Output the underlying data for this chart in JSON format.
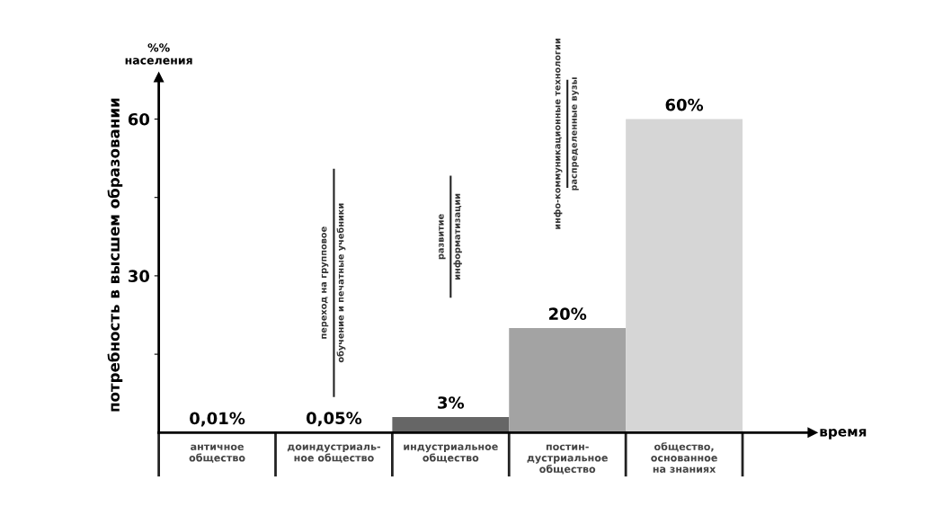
{
  "chart_data": {
    "type": "bar",
    "ylabel": "потребность в высшем образовании",
    "xlabel": "время",
    "categories": [
      "античное\nобщество",
      "доиндустриаль-\nное общество",
      "индустриальное\nобщество",
      "постин-\nдустриальное\nобщество",
      "общество,\nоснованное\nна знаниях"
    ],
    "values": [
      0.01,
      0.05,
      3,
      20,
      60
    ],
    "colors": [
      "#1e1e1e",
      "#2e2e2e",
      "#666666",
      "#a3a3a3",
      "#d6d6d6"
    ],
    "value_labels": [
      "0,01%",
      "0,05%",
      "3%",
      "20%",
      "60%"
    ],
    "ylim": [
      0,
      68
    ],
    "yticks": [
      {
        "value": 15,
        "label": null
      },
      30,
      {
        "value": 45,
        "label": null
      },
      60
    ],
    "annotations": [
      "%%\nнаселения",
      "переход на групповое\nобучение и печатные учебники",
      "развитие\nинформатизации",
      "инфо-коммуникационные технологии\nраспределенные вузы"
    ],
    "grid": false
  }
}
